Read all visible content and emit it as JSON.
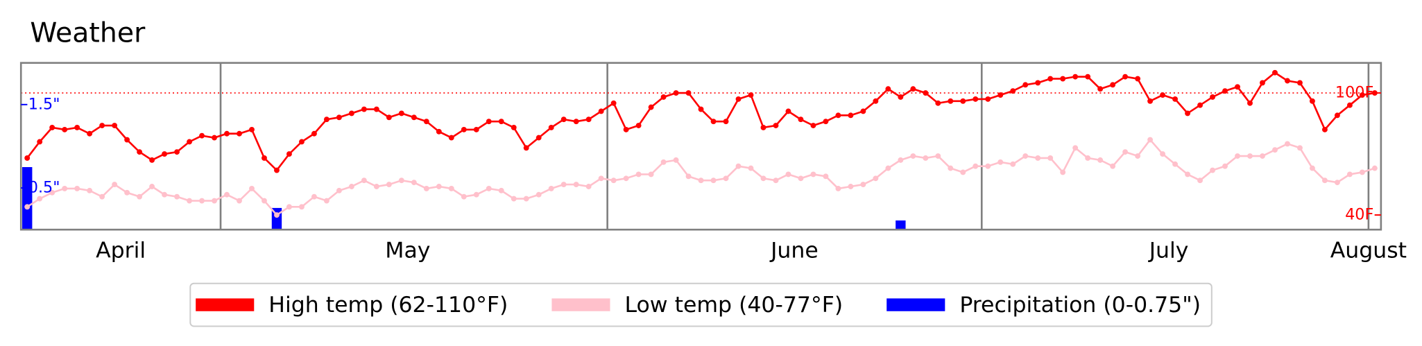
{
  "chart_data": {
    "type": "line",
    "title": "Weather",
    "x": [
      0,
      1,
      2,
      3,
      4,
      5,
      6,
      7,
      8,
      9,
      10,
      11,
      12,
      13,
      14,
      15,
      16,
      17,
      18,
      19,
      20,
      21,
      22,
      23,
      24,
      25,
      26,
      27,
      28,
      29,
      30,
      31,
      32,
      33,
      34,
      35,
      36,
      37,
      38,
      39,
      40,
      41,
      42,
      43,
      44,
      45,
      46,
      47,
      48,
      49,
      50,
      51,
      52,
      53,
      54,
      55,
      56,
      57,
      58,
      59,
      60,
      61,
      62,
      63,
      64,
      65,
      66,
      67,
      68,
      69,
      70,
      71,
      72,
      73,
      74,
      75,
      76,
      77,
      78,
      79,
      80,
      81,
      82,
      83,
      84,
      85,
      86,
      87,
      88,
      89,
      90,
      91,
      92,
      93,
      94,
      95,
      96,
      97,
      98,
      99,
      100,
      101,
      102,
      103,
      104,
      105,
      106,
      107,
      108
    ],
    "xlim": [
      -0.5,
      108.5
    ],
    "xticks": [
      {
        "value": 7.5,
        "label": "April"
      },
      {
        "value": 30.5,
        "label": "May"
      },
      {
        "value": 61.5,
        "label": "June"
      },
      {
        "value": 91.5,
        "label": "July"
      },
      {
        "value": 107.5,
        "label": "August"
      }
    ],
    "month_lines": [
      15.5,
      46.5,
      76.5,
      107.5
    ],
    "ylim": [
      32.8,
      114.8
    ],
    "yticks": [
      {
        "value": 40,
        "label": "40F"
      },
      {
        "value": 100,
        "label": "100F"
      }
    ],
    "y2lim": [
      0,
      2
    ],
    "y2ticks": [
      {
        "value": 0.5,
        "label": "0.5\""
      },
      {
        "value": 1.5,
        "label": "1.5\""
      }
    ],
    "reference_line": 100,
    "reference_color": "#ff0000",
    "y_tick_color": "#ff0000",
    "y2_tick_color": "#0000ff",
    "frame_color": "#808080",
    "legend": "lower center",
    "series": [
      {
        "name": "High temp (62-110°F)",
        "type": "line",
        "color": "#ff0000",
        "axis": "y",
        "values": [
          68,
          76,
          83,
          82,
          83,
          80,
          84,
          84,
          77,
          71,
          67,
          70,
          71,
          76,
          79,
          78,
          80,
          80,
          82,
          68,
          62,
          70,
          76,
          80,
          87,
          88,
          90,
          92,
          92,
          88,
          90,
          88,
          86,
          81,
          78,
          82,
          82,
          86,
          86,
          83,
          73,
          78,
          83,
          87,
          86,
          87,
          91,
          95,
          82,
          84,
          93,
          98,
          100,
          100,
          92,
          86,
          86,
          97,
          99,
          83,
          84,
          91,
          87,
          84,
          86,
          89,
          89,
          91,
          96,
          102,
          98,
          102,
          100,
          95,
          96,
          96,
          97,
          97,
          99,
          101,
          104,
          105,
          107,
          107,
          108,
          108,
          102,
          104,
          108,
          107,
          96,
          99,
          97,
          90,
          94,
          98,
          101,
          103,
          95,
          105,
          110,
          106,
          105,
          96,
          82,
          89,
          94,
          99,
          100
        ]
      },
      {
        "name": "Low temp (40-77°F)",
        "type": "line",
        "color": "#ffc0cb",
        "axis": "y",
        "values": [
          44,
          48,
          51,
          53,
          53,
          52,
          49,
          55,
          51,
          49,
          54,
          50,
          49,
          47,
          47,
          47,
          50,
          47,
          53,
          47,
          40,
          44,
          44,
          49,
          47,
          52,
          54,
          57,
          54,
          55,
          57,
          56,
          53,
          54,
          53,
          49,
          50,
          53,
          52,
          48,
          48,
          50,
          53,
          55,
          55,
          54,
          58,
          57,
          58,
          60,
          60,
          66,
          67,
          59,
          57,
          57,
          58,
          64,
          63,
          58,
          57,
          60,
          58,
          60,
          59,
          53,
          54,
          55,
          58,
          63,
          67,
          69,
          68,
          69,
          63,
          61,
          64,
          64,
          66,
          65,
          69,
          68,
          68,
          61,
          73,
          68,
          67,
          64,
          71,
          69,
          77,
          70,
          65,
          60,
          57,
          62,
          64,
          69,
          69,
          69,
          72,
          75,
          73,
          63,
          57,
          56,
          60,
          61,
          63
        ]
      },
      {
        "name": "Precipitation (0-0.75\")",
        "type": "bar",
        "color": "#0000ff",
        "axis": "y2",
        "values": [
          0.75,
          0,
          0,
          0,
          0,
          0,
          0,
          0,
          0,
          0,
          0,
          0,
          0,
          0,
          0,
          0,
          0,
          0,
          0,
          0,
          0.26,
          0,
          0,
          0,
          0,
          0,
          0,
          0,
          0,
          0,
          0,
          0,
          0,
          0,
          0,
          0,
          0,
          0,
          0,
          0,
          0,
          0,
          0,
          0,
          0,
          0,
          0,
          0,
          0,
          0,
          0,
          0,
          0,
          0,
          0,
          0,
          0,
          0,
          0,
          0,
          0,
          0,
          0,
          0,
          0,
          0,
          0,
          0,
          0,
          0,
          0.11,
          0,
          0,
          0,
          0,
          0,
          0,
          0,
          0,
          0,
          0,
          0,
          0,
          0,
          0,
          0,
          0,
          0,
          0,
          0,
          0,
          0,
          0,
          0,
          0,
          0,
          0,
          0,
          0,
          0,
          0,
          0,
          0,
          0,
          0,
          0,
          0,
          0,
          0
        ]
      }
    ]
  }
}
